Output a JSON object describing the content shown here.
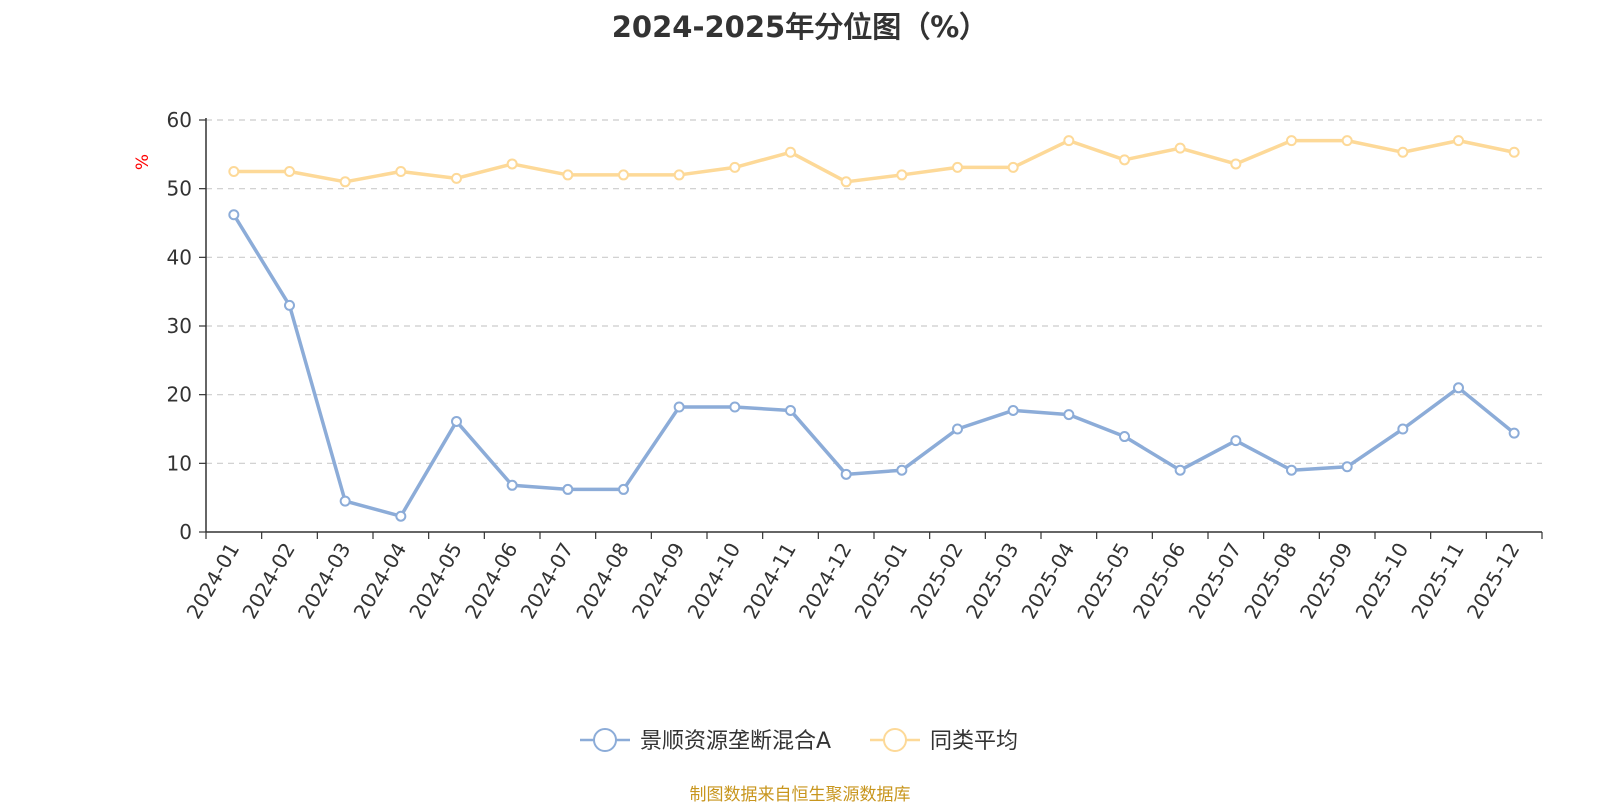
{
  "chart_data": {
    "type": "line",
    "title": "2024-2025年分位图（%）",
    "ylabel": "%",
    "xlabel": "",
    "ylim": [
      0,
      60
    ],
    "yticks": [
      0,
      10,
      20,
      30,
      40,
      50,
      60
    ],
    "grid": true,
    "legend_position": "bottom-center",
    "categories": [
      "2024-01",
      "2024-02",
      "2024-03",
      "2024-04",
      "2024-05",
      "2024-06",
      "2024-07",
      "2024-08",
      "2024-09",
      "2024-10",
      "2024-11",
      "2024-12",
      "2025-01",
      "2025-02",
      "2025-03",
      "2025-04",
      "2025-05",
      "2025-06",
      "2025-07",
      "2025-08",
      "2025-09",
      "2025-10",
      "2025-11",
      "2025-12"
    ],
    "series": [
      {
        "name": "景顺资源垄断混合A",
        "color": "#8cacd8",
        "values": [
          46.2,
          33.0,
          4.5,
          2.3,
          16.1,
          6.8,
          6.2,
          6.2,
          18.2,
          18.2,
          17.7,
          8.4,
          9.0,
          15.0,
          17.7,
          17.1,
          13.9,
          9.0,
          13.3,
          9.0,
          9.5,
          15.0,
          21.0,
          14.4
        ]
      },
      {
        "name": "同类平均",
        "color": "#fdd998",
        "values": [
          52.5,
          52.5,
          51.0,
          52.5,
          51.5,
          53.6,
          52.0,
          52.0,
          52.0,
          53.1,
          55.3,
          51.0,
          52.0,
          53.1,
          53.1,
          57.0,
          54.2,
          55.9,
          53.6,
          57.0,
          57.0,
          55.3,
          57.0,
          55.3
        ]
      }
    ]
  },
  "footer": {
    "source": "制图数据来自恒生聚源数据库"
  }
}
